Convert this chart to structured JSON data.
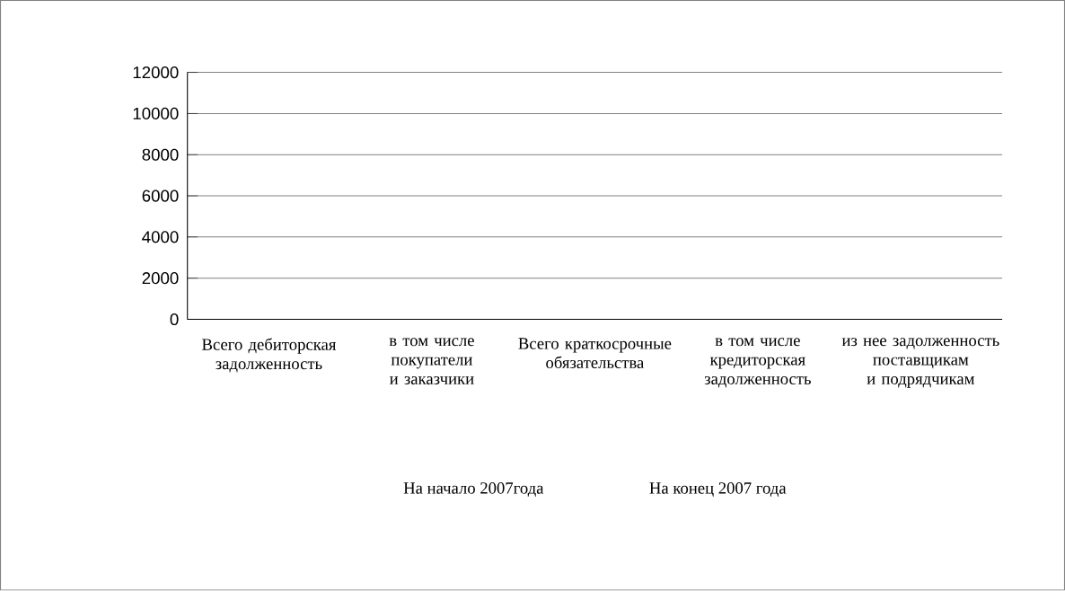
{
  "chart_data": {
    "type": "bar",
    "categories": [
      "Всего дебиторская задолженность",
      "в том числе покупатели и заказчики",
      "Всего краткосрочные обязательства",
      "в том числе кредиторская задолженность",
      "из нее задолженность поставщикам и подрядчикам"
    ],
    "series": [
      {
        "name": "На начало 2007года",
        "values": [
          null,
          null,
          null,
          null,
          null
        ]
      },
      {
        "name": "На конец  2007 года",
        "values": [
          null,
          null,
          null,
          null,
          null
        ]
      }
    ],
    "ylim": [
      0,
      12000
    ],
    "yticks": [
      0,
      2000,
      4000,
      6000,
      8000,
      10000,
      12000
    ],
    "grid": "y"
  }
}
